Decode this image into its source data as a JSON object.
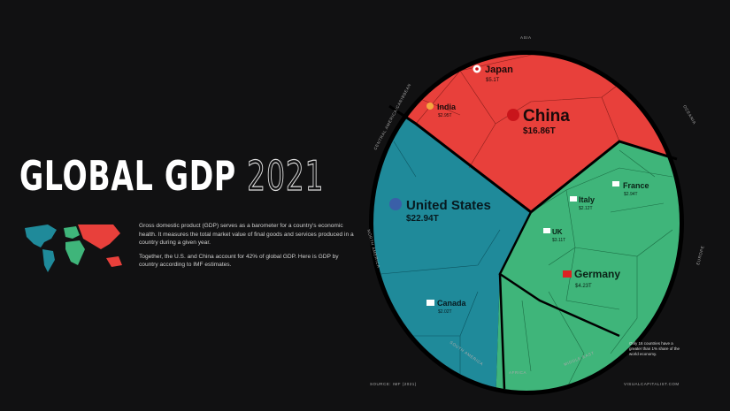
{
  "header": {
    "title_main": "GLOBAL GDP",
    "title_year": "2021"
  },
  "description": [
    "Gross domestic product (GDP) serves as a barometer for a country's economic health. It measures the total market value of final goods and services produced in a country during a given year.",
    "Together, the U.S. and China account for 42% of global GDP. Here is GDP by country according to IMF estimates."
  ],
  "footer": {
    "source": "SOURCE: IMF (2021)",
    "site": "VISUALCAPITALIST.COM"
  },
  "note": "Only 16 countries have a greater than 1% share of the world economy.",
  "colors": {
    "asia": "#e8403b",
    "americas": "#1f8a9a",
    "europe_africa_me": "#3fb57a",
    "background": "#111112"
  },
  "chart_data": {
    "type": "voronoi-treemap",
    "title": "GLOBAL GDP 2021",
    "regions": [
      "ASIA",
      "OCEANIA",
      "EUROPE",
      "MIDDLE EAST",
      "AFRICA",
      "SOUTH AMERICA",
      "NORTH AMERICA",
      "CENTRAL AMERICA/CARIBBEAN"
    ],
    "countries": [
      {
        "name": "United States",
        "value": "$22.94T",
        "region": "NORTH AMERICA"
      },
      {
        "name": "China",
        "value": "$16.86T",
        "region": "ASIA"
      },
      {
        "name": "Japan",
        "value": "$5.1T",
        "region": "ASIA"
      },
      {
        "name": "Germany",
        "value": "$4.23T",
        "region": "EUROPE"
      },
      {
        "name": "UK",
        "value": "$3.11T",
        "region": "EUROPE"
      },
      {
        "name": "India",
        "value": "$2.95T",
        "region": "ASIA"
      },
      {
        "name": "France",
        "value": "$2.94T",
        "region": "EUROPE"
      },
      {
        "name": "Italy",
        "value": "$2.12T",
        "region": "EUROPE"
      },
      {
        "name": "Canada",
        "value": "$2.02T",
        "region": "NORTH AMERICA"
      }
    ]
  }
}
